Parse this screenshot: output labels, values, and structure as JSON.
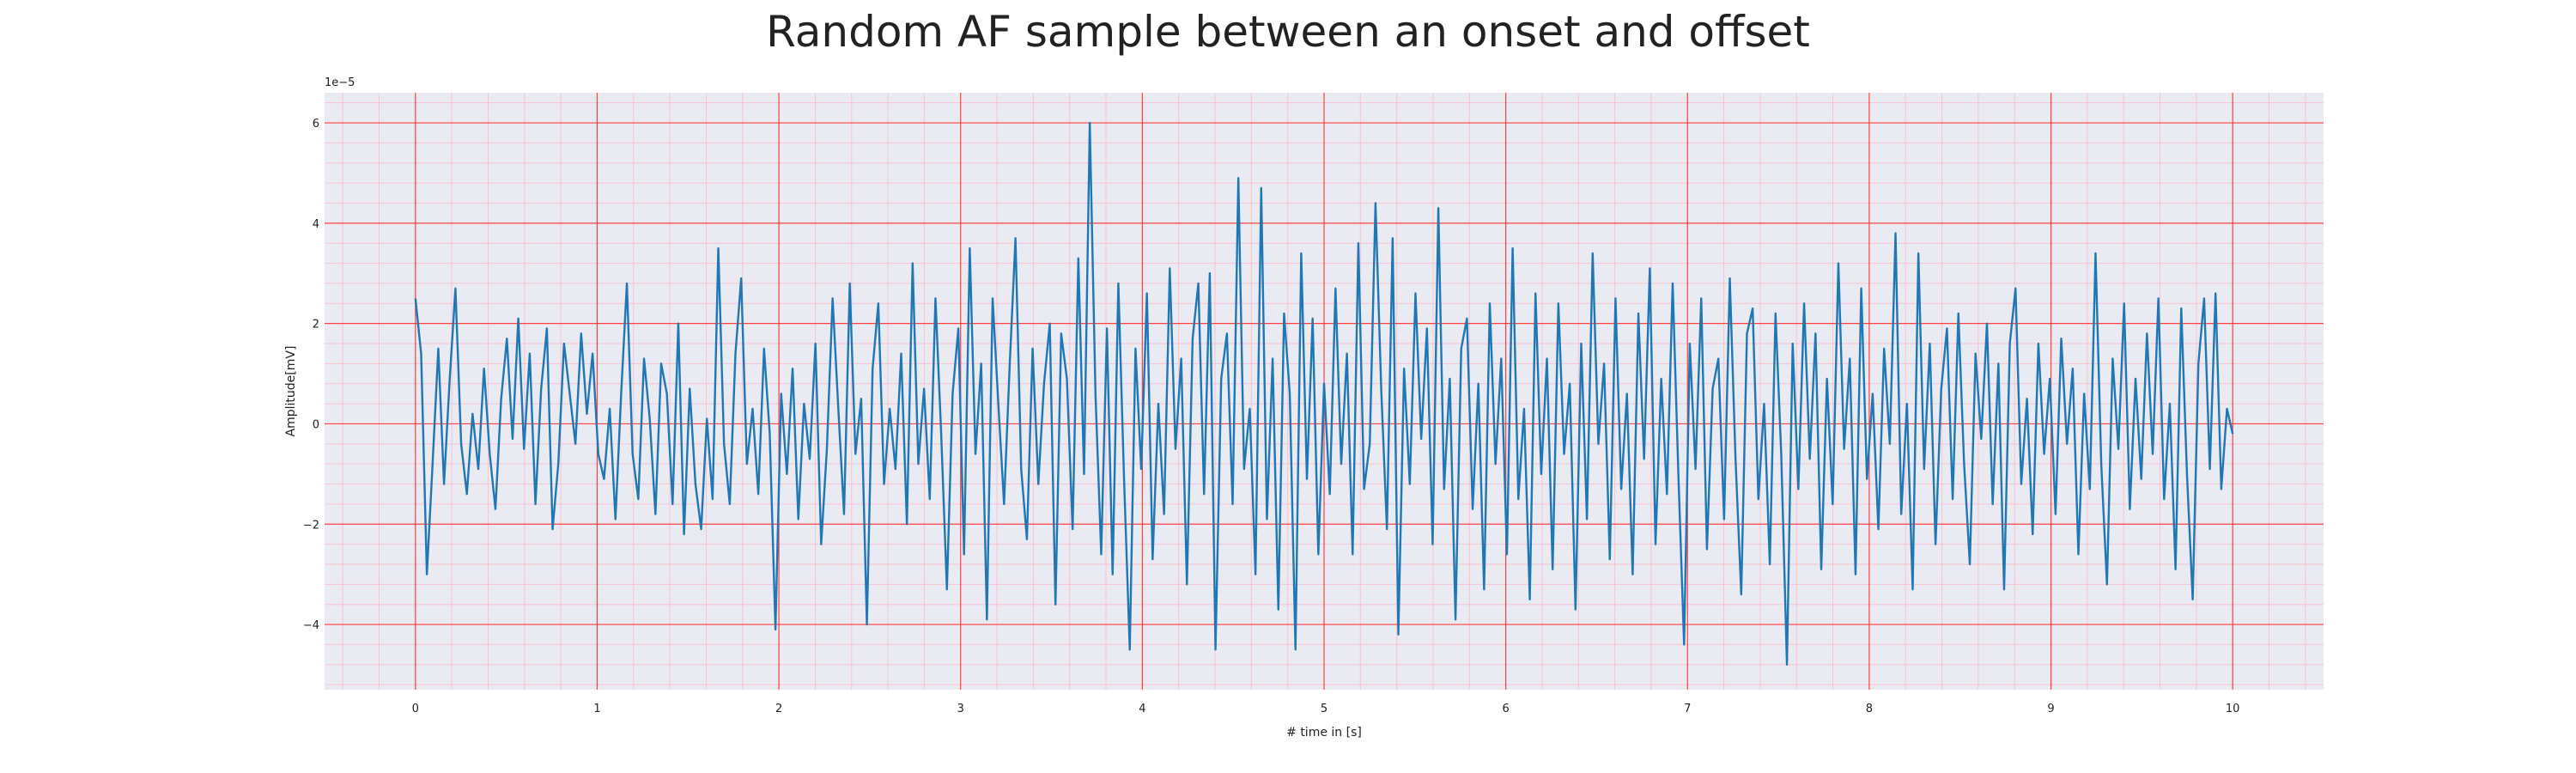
{
  "chart_data": {
    "type": "line",
    "title": "Random AF sample between an onset and offset",
    "xlabel": "# time in [s]",
    "ylabel": "Amplitude[mV]",
    "y_offset_label": "1e−5",
    "xlim": [
      -0.5,
      10.5
    ],
    "ylim": [
      -5.3,
      6.6
    ],
    "x_ticks": [
      0,
      1,
      2,
      3,
      4,
      5,
      6,
      7,
      8,
      9,
      10
    ],
    "y_ticks": [
      -4,
      -2,
      0,
      2,
      4,
      6
    ],
    "y_tick_labels": [
      "−4",
      "−2",
      "0",
      "2",
      "4",
      "6"
    ],
    "grid": "major red and minor pink gridlines",
    "colors": {
      "line": "#1f77b4",
      "background": "#eaeaf2",
      "major_grid": "#ff2a2a",
      "minor_grid": "#ffb3c1"
    },
    "series": [
      {
        "x_start": 0,
        "x_end": 10,
        "values": [
          2.5,
          1.4,
          -3.0,
          -0.8,
          1.5,
          -1.2,
          0.9,
          2.7,
          -0.4,
          -1.4,
          0.2,
          -0.9,
          1.1,
          -0.6,
          -1.7,
          0.5,
          1.7,
          -0.3,
          2.1,
          -0.5,
          1.4,
          -1.6,
          0.7,
          1.9,
          -2.1,
          -0.8,
          1.6,
          0.6,
          -0.4,
          1.8,
          0.2,
          1.4,
          -0.6,
          -1.1,
          0.3,
          -1.9,
          0.6,
          2.8,
          -0.6,
          -1.5,
          1.3,
          0.1,
          -1.8,
          1.2,
          0.6,
          -1.6,
          2.0,
          -2.2,
          0.7,
          -1.2,
          -2.1,
          0.1,
          -1.5,
          3.5,
          -0.4,
          -1.6,
          1.4,
          2.9,
          -0.8,
          0.3,
          -1.4,
          1.5,
          -0.2,
          -4.1,
          0.6,
          -1.0,
          1.1,
          -1.9,
          0.4,
          -0.7,
          1.6,
          -2.4,
          -0.5,
          2.5,
          0.3,
          -1.8,
          2.8,
          -0.6,
          0.5,
          -4.0,
          1.1,
          2.4,
          -1.2,
          0.3,
          -0.9,
          1.4,
          -2.0,
          3.2,
          -0.8,
          0.7,
          -1.5,
          2.5,
          -0.2,
          -3.3,
          0.6,
          1.9,
          -2.6,
          3.5,
          -0.6,
          1.2,
          -3.9,
          2.5,
          0.4,
          -1.6,
          1.2,
          3.7,
          -0.9,
          -2.3,
          1.5,
          -1.2,
          0.8,
          2.0,
          -3.6,
          1.8,
          0.9,
          -2.1,
          3.3,
          -1.0,
          6.0,
          0.6,
          -2.6,
          1.9,
          -3.0,
          2.8,
          -1.1,
          -4.5,
          1.5,
          -0.9,
          2.6,
          -2.7,
          0.4,
          -1.8,
          3.1,
          -0.5,
          1.3,
          -3.2,
          1.7,
          2.8,
          -1.4,
          3.0,
          -4.5,
          0.9,
          1.8,
          -1.6,
          4.9,
          -0.9,
          0.3,
          -3.0,
          4.7,
          -1.9,
          1.3,
          -3.7,
          2.2,
          0.6,
          -4.5,
          3.4,
          -1.1,
          2.1,
          -2.6,
          0.8,
          -1.4,
          2.7,
          -0.8,
          1.4,
          -2.6,
          3.6,
          -1.3,
          -0.4,
          4.4,
          0.7,
          -2.1,
          3.7,
          -4.2,
          1.1,
          -1.2,
          2.6,
          -0.3,
          1.9,
          -2.4,
          4.3,
          -1.3,
          0.9,
          -3.9,
          1.5,
          2.1,
          -1.7,
          0.8,
          -3.3,
          2.4,
          -0.8,
          1.3,
          -2.6,
          3.5,
          -1.5,
          0.3,
          -3.5,
          2.6,
          -1.0,
          1.3,
          -2.9,
          2.4,
          -0.6,
          0.8,
          -3.7,
          1.6,
          -1.9,
          3.4,
          -0.4,
          1.2,
          -2.7,
          2.5,
          -1.3,
          0.6,
          -3.0,
          2.2,
          -0.7,
          3.1,
          -2.4,
          0.9,
          -1.4,
          2.8,
          -1.0,
          -4.4,
          1.6,
          -0.9,
          2.5,
          -2.5,
          0.7,
          1.3,
          -1.9,
          2.9,
          -0.7,
          -3.4,
          1.8,
          2.3,
          -1.5,
          0.4,
          -2.8,
          2.2,
          -0.6,
          -4.8,
          1.6,
          -1.3,
          2.4,
          -0.7,
          1.8,
          -2.9,
          0.9,
          -1.6,
          3.2,
          -0.5,
          1.3,
          -3.0,
          2.7,
          -1.1,
          0.6,
          -2.1,
          1.5,
          -0.4,
          3.8,
          -1.8,
          0.4,
          -3.3,
          3.4,
          -0.9,
          1.6,
          -2.4,
          0.7,
          1.9,
          -1.5,
          2.2,
          -0.8,
          -2.8,
          1.4,
          -0.3,
          2.0,
          -1.6,
          1.2,
          -3.3,
          1.6,
          2.7,
          -1.2,
          0.5,
          -2.2,
          1.6,
          -0.6,
          0.9,
          -1.8,
          1.7,
          -0.4,
          1.1,
          -2.6,
          0.6,
          -1.3,
          3.4,
          -0.8,
          -3.2,
          1.3,
          -0.5,
          2.4,
          -1.7,
          0.9,
          -1.1,
          1.8,
          -0.6,
          2.5,
          -1.5,
          0.4,
          -2.9,
          2.3,
          -1.0,
          -3.5,
          1.2,
          2.5,
          -0.9,
          2.6,
          -1.3,
          0.3,
          -0.2
        ]
      }
    ]
  }
}
